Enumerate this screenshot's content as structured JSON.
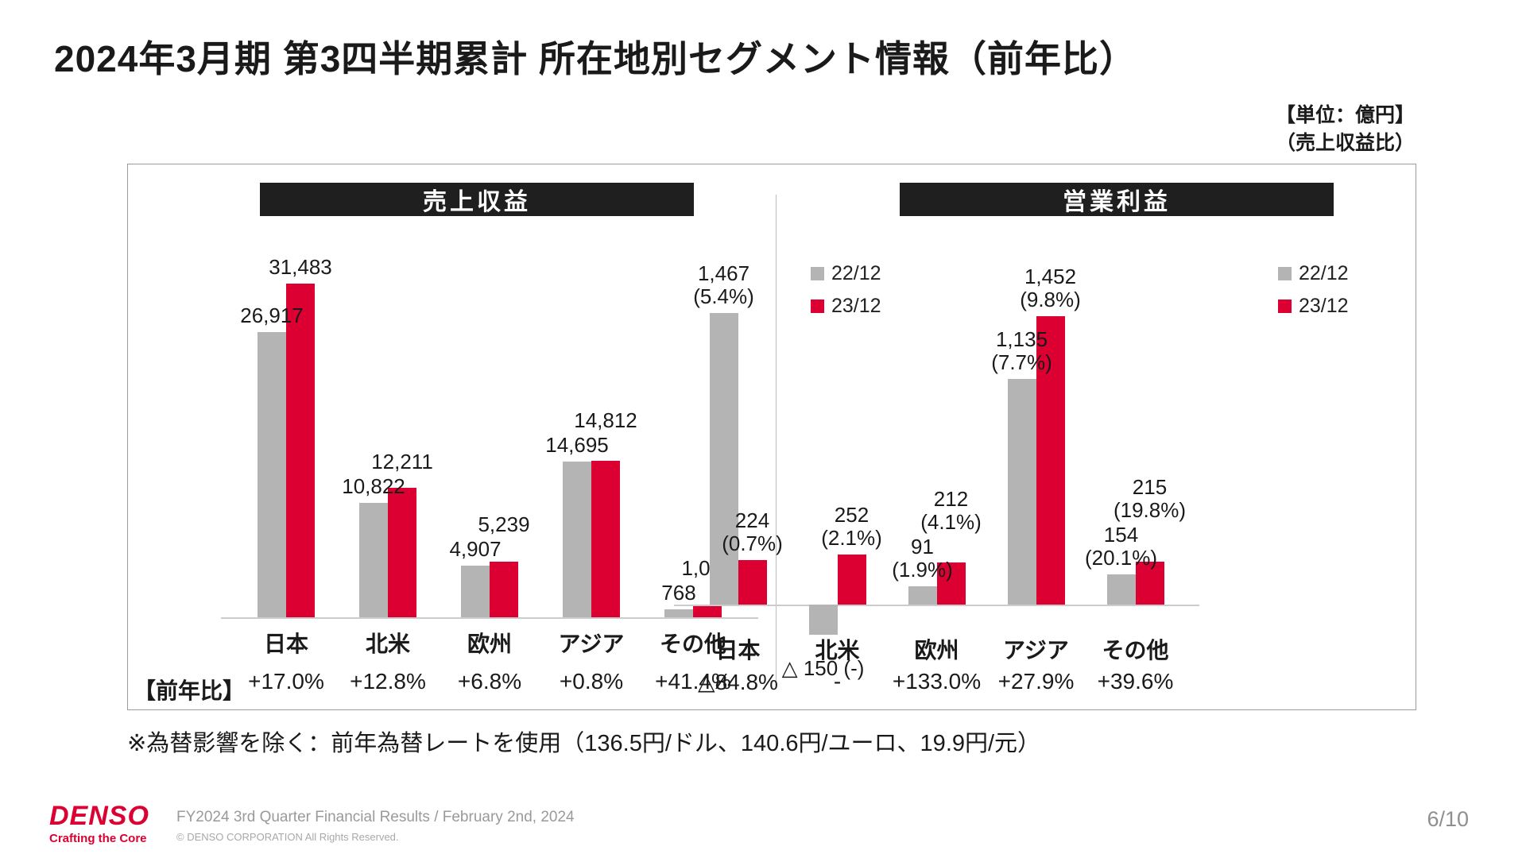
{
  "slide": {
    "title": "2024年3月期 第3四半期累計 所在地別セグメント情報（前年比）",
    "unit_note_line1": "【単位：億円】",
    "unit_note_line2": "（売上収益比）",
    "footnote": "※為替影響を除く：前年為替レートを使用（136.5円/ドル、140.6円/ユーロ、19.9円/元）",
    "page_number": "6/10"
  },
  "footer": {
    "logo_text": "DENSO",
    "logo_tagline": "Crafting the Core",
    "event_line": "FY2024 3rd Quarter Financial Results / February 2nd, 2024",
    "copyright": "© DENSO CORPORATION All Rights Reserved."
  },
  "legend": {
    "series1": "22/12",
    "series2": "23/12"
  },
  "colors": {
    "series1": "#b4b4b4",
    "series2": "#dc0032"
  },
  "yoy_label": "【前年比】",
  "chart_data": [
    {
      "type": "bar",
      "title": "売上収益",
      "categories": [
        "日本",
        "北米",
        "欧州",
        "アジア",
        "その他"
      ],
      "series": [
        {
          "name": "22/12",
          "values": [
            26917,
            10822,
            4907,
            14695,
            768
          ]
        },
        {
          "name": "23/12",
          "values": [
            31483,
            12211,
            5239,
            14812,
            1087
          ]
        }
      ],
      "labels": [
        [
          "26,917",
          "10,822",
          "4,907",
          "14,695",
          "768"
        ],
        [
          "31,483",
          "12,211",
          "5,239",
          "14,812",
          "1,087"
        ]
      ],
      "yoy": [
        "+17.0%",
        "+12.8%",
        "+6.8%",
        "+0.8%",
        "+41.4%"
      ],
      "ylim": [
        0,
        33000
      ],
      "legend_position": "top-right",
      "grid": false
    },
    {
      "type": "bar",
      "title": "営業利益",
      "categories": [
        "日本",
        "北米",
        "欧州",
        "アジア",
        "その他"
      ],
      "series": [
        {
          "name": "22/12",
          "values": [
            1467,
            -150,
            91,
            1135,
            154
          ]
        },
        {
          "name": "23/12",
          "values": [
            224,
            252,
            212,
            1452,
            215
          ]
        }
      ],
      "labels": [
        [
          "1,467\n(5.4%)",
          "△ 150  (-)",
          "91\n(1.9%)",
          "1,135\n(7.7%)",
          "154\n(20.1%)"
        ],
        [
          "224\n(0.7%)",
          "252\n(2.1%)",
          "212\n(4.1%)",
          "1,452\n(9.8%)",
          "215\n(19.8%)"
        ]
      ],
      "yoy": [
        "△84.8%",
        "-",
        "+133.0%",
        "+27.9%",
        "+39.6%"
      ],
      "ylim": [
        -200,
        1600
      ],
      "legend_position": "top-right",
      "grid": false
    }
  ]
}
